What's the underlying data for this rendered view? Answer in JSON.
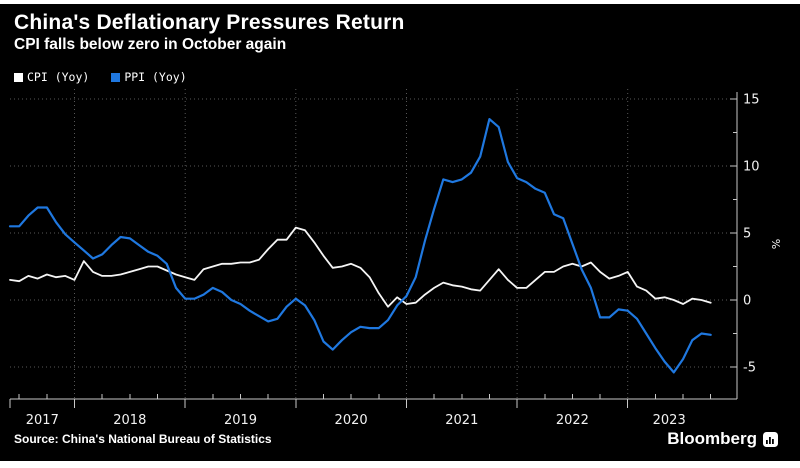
{
  "header": {
    "title": "China's Deflationary Pressures Return",
    "subtitle": "CPI falls below zero in October again"
  },
  "legend": {
    "items": [
      {
        "label": "CPI (Yoy)",
        "color": "#ffffff"
      },
      {
        "label": "PPI (Yoy)",
        "color": "#1f78e0"
      }
    ]
  },
  "footer": {
    "source": "Source: China's National Bureau of Statistics",
    "brand": "Bloomberg"
  },
  "chart_data": {
    "type": "line",
    "x_frequency": "monthly",
    "x_start": "2017-06",
    "x_end": "2023-10",
    "x_tick_labels": [
      "2017",
      "2018",
      "2019",
      "2020",
      "2021",
      "2022",
      "2023"
    ],
    "ylabel": "%",
    "y_ticks": [
      15,
      10,
      5,
      0,
      -5
    ],
    "y_minor_ticks": [
      12.5,
      7.5,
      2.5,
      -2.5
    ],
    "ylim": [
      -7.4,
      15.5
    ],
    "grid": "dotted",
    "legend_position": "top-left",
    "series": [
      {
        "name": "CPI (Yoy)",
        "color": "#f5f5f5",
        "values": [
          1.5,
          1.4,
          1.8,
          1.6,
          1.9,
          1.7,
          1.8,
          1.5,
          2.9,
          2.1,
          1.8,
          1.8,
          1.9,
          2.1,
          2.3,
          2.5,
          2.5,
          2.2,
          1.9,
          1.7,
          1.5,
          2.3,
          2.5,
          2.7,
          2.7,
          2.8,
          2.8,
          3.0,
          3.8,
          4.5,
          4.5,
          5.4,
          5.2,
          4.3,
          3.3,
          2.4,
          2.5,
          2.7,
          2.4,
          1.7,
          0.5,
          -0.5,
          0.2,
          -0.3,
          -0.2,
          0.4,
          0.9,
          1.3,
          1.1,
          1.0,
          0.8,
          0.7,
          1.5,
          2.3,
          1.5,
          0.9,
          0.9,
          1.5,
          2.1,
          2.1,
          2.5,
          2.7,
          2.5,
          2.8,
          2.1,
          1.6,
          1.8,
          2.1,
          1.0,
          0.7,
          0.1,
          0.2,
          0.0,
          -0.3,
          0.1,
          0.0,
          -0.2
        ]
      },
      {
        "name": "PPI (Yoy)",
        "color": "#1f78e0",
        "values": [
          5.5,
          5.5,
          6.3,
          6.9,
          6.9,
          5.8,
          4.9,
          4.3,
          3.7,
          3.1,
          3.4,
          4.1,
          4.7,
          4.6,
          4.1,
          3.6,
          3.3,
          2.7,
          0.9,
          0.1,
          0.1,
          0.4,
          0.9,
          0.6,
          0.0,
          -0.3,
          -0.8,
          -1.2,
          -1.6,
          -1.4,
          -0.5,
          0.1,
          -0.4,
          -1.5,
          -3.1,
          -3.7,
          -3.0,
          -2.4,
          -2.0,
          -2.1,
          -2.1,
          -1.5,
          -0.4,
          0.3,
          1.7,
          4.4,
          6.8,
          9.0,
          8.8,
          9.0,
          9.5,
          10.7,
          13.5,
          12.9,
          10.3,
          9.1,
          8.8,
          8.3,
          8.0,
          6.4,
          6.1,
          4.2,
          2.3,
          0.9,
          -1.3,
          -1.3,
          -0.7,
          -0.8,
          -1.4,
          -2.5,
          -3.6,
          -4.6,
          -5.4,
          -4.4,
          -3.0,
          -2.5,
          -2.6
        ]
      }
    ]
  },
  "colors": {
    "background": "#000000",
    "page_border": "#ffffff",
    "grid": "#575757",
    "axis": "#c8c8c8",
    "tick_text": "#f2f2f2"
  }
}
